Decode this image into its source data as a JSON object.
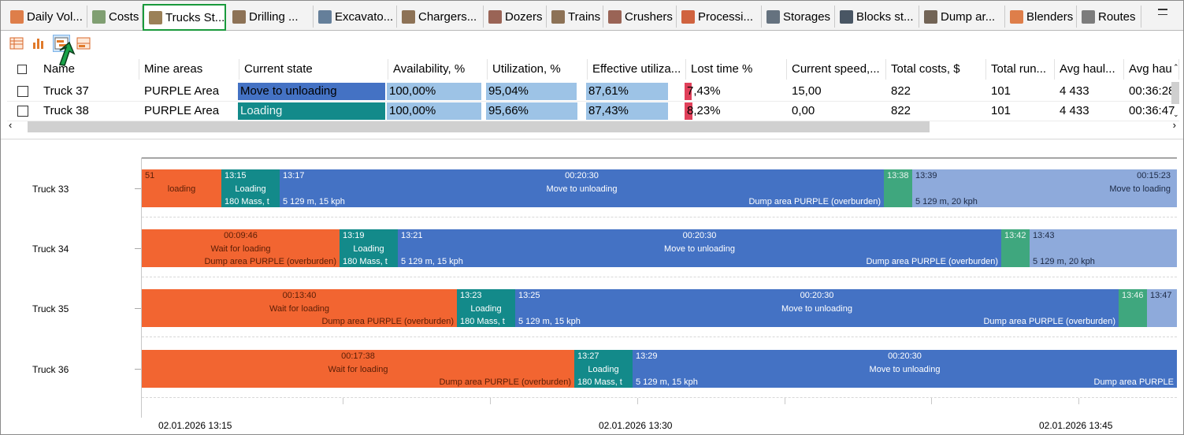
{
  "tabs": [
    {
      "label": "Daily Vol...",
      "icon": "table-icon"
    },
    {
      "label": "Costs",
      "icon": "money-icon"
    },
    {
      "label": "Trucks St...",
      "icon": "truck-icon",
      "active": true
    },
    {
      "label": "Drilling ...",
      "icon": "drill-rig-icon"
    },
    {
      "label": "Excavato...",
      "icon": "excavator-icon"
    },
    {
      "label": "Chargers...",
      "icon": "charger-truck-icon"
    },
    {
      "label": "Dozers",
      "icon": "dozer-icon"
    },
    {
      "label": "Trains",
      "icon": "train-icon"
    },
    {
      "label": "Crushers",
      "icon": "crusher-icon"
    },
    {
      "label": "Processi...",
      "icon": "factory-icon"
    },
    {
      "label": "Storages",
      "icon": "storage-icon"
    },
    {
      "label": "Blocks st...",
      "icon": "block-icon"
    },
    {
      "label": "Dump ar...",
      "icon": "dump-area-icon"
    },
    {
      "label": "Blenders",
      "icon": "blender-icon"
    },
    {
      "label": "Routes",
      "icon": "route-icon"
    }
  ],
  "toolbar": {
    "buttons": [
      "grid-view-icon",
      "bar-chart-icon",
      "gantt-view-icon",
      "split-view-icon"
    ],
    "selected": "gantt-view-icon"
  },
  "grid": {
    "columns": [
      "Name",
      "Mine areas",
      "Current state",
      "Availability, %",
      "Utilization, %",
      "Effective utiliza...",
      "Lost time %",
      "Current speed,...",
      "Total costs, $",
      "Total run...",
      "Avg haul...",
      "Avg hau"
    ],
    "rows": [
      {
        "name": "Truck 37",
        "area": "PURPLE Area",
        "state": "Move to unloading",
        "availability": "100,00%",
        "utilization": "95,04%",
        "effective": "87,61%",
        "lost": "7,43%",
        "speed": "15,00",
        "costs": "822",
        "runs": "101",
        "avg_haul": "4 433",
        "avg_hau2": "00:36:28"
      },
      {
        "name": "Truck 38",
        "area": "PURPLE Area",
        "state": "Loading",
        "availability": "100,00%",
        "utilization": "95,66%",
        "effective": "87,43%",
        "lost": "8,23%",
        "speed": "0,00",
        "costs": "822",
        "runs": "101",
        "avg_haul": "4 433",
        "avg_hau2": "00:36:47"
      }
    ],
    "fills": {
      "availability": [
        1.0,
        1.0
      ],
      "utilization": [
        0.9504,
        0.9566
      ],
      "effective": [
        0.8761,
        0.8743
      ],
      "lost": [
        0.0743,
        0.0823
      ]
    }
  },
  "colors": {
    "state_move": "#4472c4",
    "state_loading": "#138a8a",
    "pct_bar": "#9dc3e6",
    "lost_bar": "#e0405a",
    "wait": "#f26531",
    "return": "#3fa77e",
    "return_move": "#8eaadb",
    "tab_highlight": "#1a9a3c"
  },
  "gantt": {
    "lanes": [
      {
        "label": "Truck 33",
        "segments": [
          {
            "type": "orange",
            "top": "51",
            "mid": "loading"
          },
          {
            "type": "teal",
            "top": "13:15",
            "mid": "Loading",
            "bot": "180 Mass, t"
          },
          {
            "type": "blue",
            "top": "13:17",
            "center_top": "00:20:30",
            "center_mid": "Move to unloading",
            "bot": "5 129 m, 15 kph",
            "bot_right": "Dump area PURPLE (overburden)"
          },
          {
            "type": "green",
            "top": "13:38"
          },
          {
            "type": "lblue",
            "top": "13:39",
            "right_top": "00:15:23",
            "right_mid": "Move to loading",
            "bot": "5 129 m, 20 kph"
          }
        ]
      },
      {
        "label": "Truck 34",
        "segments": [
          {
            "type": "orange",
            "center_top": "00:09:46",
            "center_mid": "Wait for loading",
            "bot_right": "Dump area PURPLE (overburden)"
          },
          {
            "type": "teal",
            "top": "13:19",
            "mid": "Loading",
            "bot": "180 Mass, t"
          },
          {
            "type": "blue",
            "top": "13:21",
            "center_top": "00:20:30",
            "center_mid": "Move to unloading",
            "bot": "5 129 m, 15 kph",
            "bot_right": "Dump area PURPLE (overburden)"
          },
          {
            "type": "green",
            "top": "13:42"
          },
          {
            "type": "lblue",
            "top": "13:43",
            "bot": "5 129 m, 20 kph"
          }
        ]
      },
      {
        "label": "Truck 35",
        "segments": [
          {
            "type": "orange",
            "center_top": "00:13:40",
            "center_mid": "Wait for loading",
            "bot_right": "Dump area PURPLE (overburden)"
          },
          {
            "type": "teal",
            "top": "13:23",
            "mid": "Loading",
            "bot": "180 Mass, t"
          },
          {
            "type": "blue",
            "top": "13:25",
            "center_top": "00:20:30",
            "center_mid": "Move to unloading",
            "bot": "5 129 m, 15 kph",
            "bot_right": "Dump area PURPLE (overburden)"
          },
          {
            "type": "green",
            "top": "13:46"
          },
          {
            "type": "lblue",
            "top": "13:47"
          }
        ]
      },
      {
        "label": "Truck 36",
        "segments": [
          {
            "type": "orange",
            "center_top": "00:17:38",
            "center_mid": "Wait for loading",
            "bot_right": "Dump area PURPLE (overburden)"
          },
          {
            "type": "teal",
            "top": "13:27",
            "mid": "Loading",
            "bot": "180 Mass, t"
          },
          {
            "type": "blue",
            "top": "13:29",
            "center_top": "00:20:30",
            "center_mid": "Move to unloading",
            "bot": "5 129 m, 15 kph",
            "bot_right": "Dump area PURPLE"
          }
        ]
      }
    ],
    "axis": [
      "02.01.2026 13:15",
      "02.01.2026 13:30",
      "02.01.2026 13:45"
    ]
  }
}
